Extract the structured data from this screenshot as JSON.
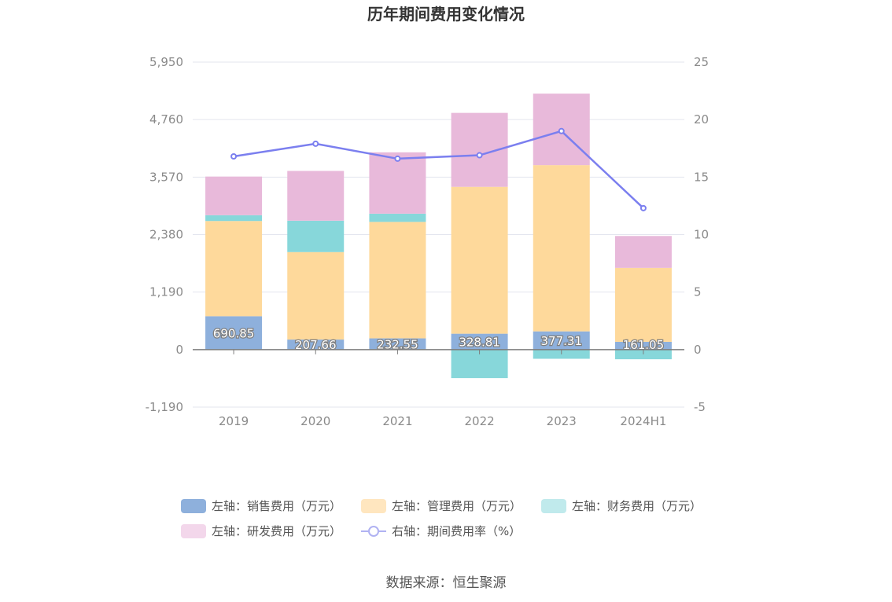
{
  "chart_data": {
    "type": "bar",
    "title": "历年期间费用变化情况",
    "categories": [
      "2019",
      "2020",
      "2021",
      "2022",
      "2023",
      "2024H1"
    ],
    "series": [
      {
        "name": "左轴：销售费用（万元）",
        "axis": "left",
        "type": "bar",
        "color": "#8eb0dc",
        "values": [
          690.85,
          207.66,
          232.55,
          328.81,
          377.31,
          161.05
        ],
        "labels": [
          "690.85",
          "207.66",
          "232.55",
          "328.81",
          "377.31",
          "161.05"
        ]
      },
      {
        "name": "左轴：管理费用（万元）",
        "axis": "left",
        "type": "bar",
        "color": "#fed99b",
        "values": [
          1970,
          1810,
          2410,
          3040,
          3440,
          1530
        ]
      },
      {
        "name": "左轴：财务费用（万元）",
        "axis": "left",
        "type": "bar",
        "color": "#87d7da",
        "values": [
          120,
          650,
          170,
          -590,
          -190,
          -200
        ]
      },
      {
        "name": "左轴：研发费用（万元）",
        "axis": "left",
        "type": "bar",
        "color": "#e8b9da",
        "values": [
          800,
          1030,
          1270,
          1530,
          1480,
          660
        ]
      },
      {
        "name": "右轴：期间费用率（%）",
        "axis": "right",
        "type": "line",
        "color": "#7b7fef",
        "values": [
          16.8,
          17.9,
          16.6,
          16.9,
          19.0,
          12.3
        ]
      }
    ],
    "y_left": {
      "min": -1190,
      "max": 5950,
      "ticks": [
        "5,950",
        "4,760",
        "3,570",
        "2,380",
        "1,190",
        "0",
        "-1,190"
      ]
    },
    "y_right": {
      "min": -5,
      "max": 25,
      "ticks": [
        "25",
        "20",
        "15",
        "10",
        "5",
        "0",
        "-5"
      ]
    },
    "grid": true,
    "legend_position": "bottom"
  },
  "source": "数据来源：恒生聚源",
  "colors": {
    "legend_swatches": [
      "#8eb0dc",
      "#ffe6bf",
      "#c0eaec",
      "#f3d7eb",
      "#b0b2f2"
    ]
  }
}
